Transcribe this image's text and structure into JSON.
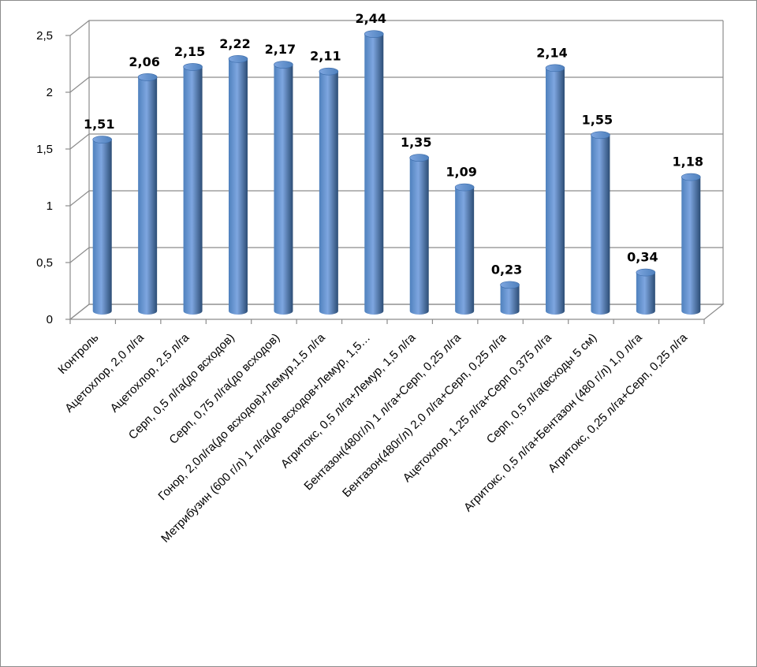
{
  "chart_data": {
    "type": "bar",
    "title": "",
    "xlabel": "",
    "ylabel": "",
    "ylim": [
      0,
      2.5
    ],
    "yticks": [
      "0",
      "0,5",
      "1",
      "1,5",
      "2",
      "2,5"
    ],
    "grid": true,
    "legend": "none",
    "categories": [
      "Контроль",
      "Ацетохлор, 2,0 л/га",
      "Ацетохлор, 2,5 л/га",
      "Серп, 0,5 л/га(до всходов)",
      "Серп, 0,75 л/га(до всходов)",
      "Гонор, 2,0л/га(до всходов)+Лемур,1,5 л/га",
      "Метрибузин (600 г/л) 1 л/га(до всходов+Лемур, 1,5…",
      "Агритокс, 0,5 л/га+Лемур, 1,5 л/га",
      "Бентазон(480г/л) 1 л/га+Серп, 0,25 л/га",
      "Бентазон(480г/л) 2,0 л/га+Серп, 0,25 л/га",
      "Ацетохлор, 1,25 л/га+Серп 0,375 л/га",
      "Серп, 0,5 л/га(всходы 5 см)",
      "Агритокс, 0,5 л/га+Бентазон (480 г/л) 1,0 л/га",
      "Агритокс, 0,25 л/га+Серп, 0,25 л/га"
    ],
    "values": [
      1.51,
      2.06,
      2.15,
      2.22,
      2.17,
      2.11,
      2.44,
      1.35,
      1.09,
      0.23,
      2.14,
      1.55,
      0.34,
      1.18
    ],
    "data_labels": [
      "1,51",
      "2,06",
      "2,15",
      "2,22",
      "2,17",
      "2,11",
      "2,44",
      "1,35",
      "1,09",
      "0,23",
      "2,14",
      "1,55",
      "0,34",
      "1,18"
    ],
    "colors": {
      "bar_light": "#7ea6e0",
      "bar_mid": "#4f81bd",
      "bar_dark": "#2c4d75",
      "grid": "#8c8c8c",
      "wall": "#ffffff"
    }
  }
}
